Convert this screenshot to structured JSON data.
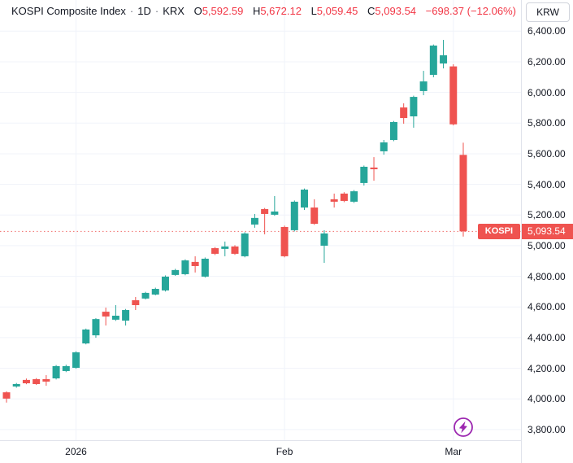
{
  "header": {
    "symbol_title": "KOSPI Composite Index",
    "separator": "·",
    "interval": "1D",
    "exchange": "KRX",
    "ohlc": [
      {
        "label": "O",
        "value": "5,592.59"
      },
      {
        "label": "H",
        "value": "5,672.12"
      },
      {
        "label": "L",
        "value": "5,059.45"
      },
      {
        "label": "C",
        "value": "5,093.54"
      }
    ],
    "change": "−698.37 (−12.06%)"
  },
  "price_axis": {
    "currency_button": "KRW",
    "ticks": [
      "6,400.00",
      "6,200.00",
      "6,000.00",
      "5,800.00",
      "5,600.00",
      "5,400.00",
      "5,200.00",
      "5,000.00",
      "4,800.00",
      "4,600.00",
      "4,400.00",
      "4,200.00",
      "4,000.00",
      "3,800.00"
    ],
    "last_price_label": "5,093.54"
  },
  "time_axis": {
    "ticks": [
      {
        "label": "2026",
        "index": 7
      },
      {
        "label": "Feb",
        "index": 28
      },
      {
        "label": "Mar",
        "index": 45
      }
    ]
  },
  "price_line": {
    "symbol_badge": "KOSPI",
    "price": 5093.54
  },
  "colors": {
    "up": "#26a69a",
    "down": "#ef5350",
    "badge": "#ef5350",
    "grid": "#f0f3fa",
    "text": "#131722",
    "border": "#e0e3eb",
    "accent_purple": "#9c27b0",
    "value_red": "#f23645"
  },
  "chart_data": {
    "type": "candlestick",
    "title": "KOSPI Composite Index",
    "interval": "1D",
    "exchange": "KRX",
    "currency": "KRW",
    "ylim": [
      3800,
      6400
    ],
    "y_grid_step": 200,
    "x_range_labels": [
      "2026",
      "Feb",
      "Mar"
    ],
    "grid": true,
    "last_price": 5093.54,
    "last_change": -698.37,
    "last_change_pct": -12.06,
    "candles": [
      {
        "o": 4043.0,
        "h": 4050.0,
        "l": 3976.0,
        "c": 4002.0
      },
      {
        "o": 4081.0,
        "h": 4104.0,
        "l": 4073.0,
        "c": 4097.0
      },
      {
        "o": 4124.0,
        "h": 4133.0,
        "l": 4096.0,
        "c": 4102.0
      },
      {
        "o": 4129.0,
        "h": 4136.0,
        "l": 4091.0,
        "c": 4097.0
      },
      {
        "o": 4129.0,
        "h": 4155.0,
        "l": 4086.0,
        "c": 4113.0
      },
      {
        "o": 4134.0,
        "h": 4221.0,
        "l": 4127.0,
        "c": 4214.0
      },
      {
        "o": 4182.0,
        "h": 4223.0,
        "l": 4175.0,
        "c": 4214.0
      },
      {
        "o": 4203.0,
        "h": 4311.0,
        "l": 4197.0,
        "c": 4304.0
      },
      {
        "o": 4362.0,
        "h": 4459.0,
        "l": 4356.0,
        "c": 4453.0
      },
      {
        "o": 4415.0,
        "h": 4527.0,
        "l": 4399.0,
        "c": 4521.0
      },
      {
        "o": 4569.0,
        "h": 4596.0,
        "l": 4479.0,
        "c": 4538.0
      },
      {
        "o": 4517.0,
        "h": 4612.0,
        "l": 4509.0,
        "c": 4543.0
      },
      {
        "o": 4511.0,
        "h": 4587.0,
        "l": 4479.0,
        "c": 4580.0
      },
      {
        "o": 4644.0,
        "h": 4665.0,
        "l": 4580.0,
        "c": 4612.0
      },
      {
        "o": 4655.0,
        "h": 4699.0,
        "l": 4649.0,
        "c": 4692.0
      },
      {
        "o": 4681.0,
        "h": 4726.0,
        "l": 4676.0,
        "c": 4718.0
      },
      {
        "o": 4708.0,
        "h": 4806.0,
        "l": 4701.0,
        "c": 4798.0
      },
      {
        "o": 4809.0,
        "h": 4849.0,
        "l": 4803.0,
        "c": 4841.0
      },
      {
        "o": 4814.0,
        "h": 4911.0,
        "l": 4807.0,
        "c": 4904.0
      },
      {
        "o": 4894.0,
        "h": 4931.0,
        "l": 4825.0,
        "c": 4867.0
      },
      {
        "o": 4798.0,
        "h": 4923.0,
        "l": 4792.0,
        "c": 4915.0
      },
      {
        "o": 4984.0,
        "h": 4991.0,
        "l": 4939.0,
        "c": 4947.0
      },
      {
        "o": 4979.0,
        "h": 5027.0,
        "l": 4931.0,
        "c": 4995.0
      },
      {
        "o": 4995.0,
        "h": 5003.0,
        "l": 4940.0,
        "c": 4947.0
      },
      {
        "o": 4931.0,
        "h": 5088.0,
        "l": 4924.0,
        "c": 5080.0
      },
      {
        "o": 5138.0,
        "h": 5207.0,
        "l": 5117.0,
        "c": 5181.0
      },
      {
        "o": 5239.0,
        "h": 5246.0,
        "l": 5074.0,
        "c": 5207.0
      },
      {
        "o": 5202.0,
        "h": 5324.0,
        "l": 5195.0,
        "c": 5223.0
      },
      {
        "o": 5122.0,
        "h": 5131.0,
        "l": 4924.0,
        "c": 4931.0
      },
      {
        "o": 5101.0,
        "h": 5295.0,
        "l": 5093.0,
        "c": 5287.0
      },
      {
        "o": 5249.0,
        "h": 5373.0,
        "l": 5233.0,
        "c": 5366.0
      },
      {
        "o": 5249.0,
        "h": 5303.0,
        "l": 5136.0,
        "c": 5143.0
      },
      {
        "o": 5000.0,
        "h": 5101.0,
        "l": 4888.0,
        "c": 5080.0
      },
      {
        "o": 5303.0,
        "h": 5340.0,
        "l": 5249.0,
        "c": 5287.0
      },
      {
        "o": 5340.0,
        "h": 5349.0,
        "l": 5284.0,
        "c": 5292.0
      },
      {
        "o": 5287.0,
        "h": 5363.0,
        "l": 5279.0,
        "c": 5355.0
      },
      {
        "o": 5409.0,
        "h": 5523.0,
        "l": 5393.0,
        "c": 5515.0
      },
      {
        "o": 5510.0,
        "h": 5578.0,
        "l": 5424.0,
        "c": 5499.0
      },
      {
        "o": 5616.0,
        "h": 5690.0,
        "l": 5594.0,
        "c": 5674.0
      },
      {
        "o": 5690.0,
        "h": 5814.0,
        "l": 5682.0,
        "c": 5807.0
      },
      {
        "o": 5902.0,
        "h": 5929.0,
        "l": 5796.0,
        "c": 5833.0
      },
      {
        "o": 5844.0,
        "h": 5979.0,
        "l": 5770.0,
        "c": 5971.0
      },
      {
        "o": 6009.0,
        "h": 6141.0,
        "l": 5982.0,
        "c": 6072.0
      },
      {
        "o": 6115.0,
        "h": 6313.0,
        "l": 6099.0,
        "c": 6306.0
      },
      {
        "o": 6189.0,
        "h": 6343.0,
        "l": 6157.0,
        "c": 6243.0
      },
      {
        "o": 6170.0,
        "h": 6184.0,
        "l": 5785.0,
        "c": 5791.91
      },
      {
        "o": 5592.59,
        "h": 5672.12,
        "l": 5059.45,
        "c": 5093.54
      }
    ]
  }
}
